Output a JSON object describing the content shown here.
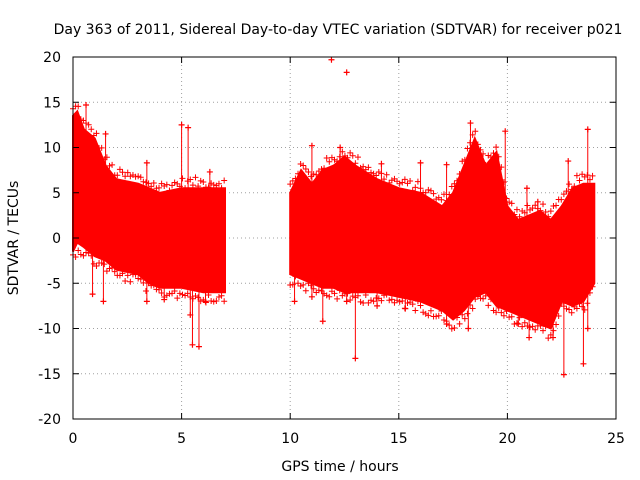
{
  "chart_data": {
    "type": "scatter",
    "title": "Day 363 of 2011, Sidereal Day-to-day VTEC variation (SDTVAR) for receiver p021",
    "xlabel": "GPS time / hours",
    "ylabel": "SDTVAR / TECUs",
    "xlim": [
      0,
      25
    ],
    "ylim": [
      -20,
      20
    ],
    "xticks": [
      "0",
      "5",
      "10",
      "15",
      "20",
      "25"
    ],
    "yticks": [
      "20",
      "15",
      "10",
      "5",
      "0",
      "-5",
      "-10",
      "-15",
      "-20"
    ],
    "grid": true,
    "marker": "+",
    "series": [
      {
        "name": "p021",
        "color": "#ff0000",
        "envelope": [
          {
            "x": 0.0,
            "lo": -1.5,
            "hi": 13.5
          },
          {
            "x": 0.2,
            "lo": -0.5,
            "hi": 14.0
          },
          {
            "x": 0.5,
            "lo": -1.0,
            "hi": 12.0
          },
          {
            "x": 1.0,
            "lo": -2.0,
            "hi": 11.0
          },
          {
            "x": 1.5,
            "lo": -2.5,
            "hi": 8.0
          },
          {
            "x": 2.0,
            "lo": -3.5,
            "hi": 6.5
          },
          {
            "x": 3.0,
            "lo": -4.0,
            "hi": 6.0
          },
          {
            "x": 3.5,
            "lo": -5.0,
            "hi": 5.5
          },
          {
            "x": 4.0,
            "lo": -5.5,
            "hi": 5.0
          },
          {
            "x": 5.0,
            "lo": -5.5,
            "hi": 5.5
          },
          {
            "x": 6.0,
            "lo": -6.0,
            "hi": 5.5
          },
          {
            "x": 7.0,
            "lo": -6.0,
            "hi": 5.5
          },
          {
            "x": 10.0,
            "lo": -4.0,
            "hi": 5.0
          },
          {
            "x": 10.5,
            "lo": -4.5,
            "hi": 7.5
          },
          {
            "x": 11.0,
            "lo": -5.0,
            "hi": 6.0
          },
          {
            "x": 11.5,
            "lo": -5.5,
            "hi": 7.5
          },
          {
            "x": 12.0,
            "lo": -5.5,
            "hi": 8.0
          },
          {
            "x": 12.5,
            "lo": -6.0,
            "hi": 9.0
          },
          {
            "x": 13.0,
            "lo": -6.0,
            "hi": 8.0
          },
          {
            "x": 14.0,
            "lo": -6.0,
            "hi": 6.5
          },
          {
            "x": 15.0,
            "lo": -6.5,
            "hi": 5.5
          },
          {
            "x": 16.0,
            "lo": -7.0,
            "hi": 5.0
          },
          {
            "x": 17.0,
            "lo": -8.0,
            "hi": 3.5
          },
          {
            "x": 17.5,
            "lo": -9.0,
            "hi": 5.0
          },
          {
            "x": 18.0,
            "lo": -8.0,
            "hi": 8.0
          },
          {
            "x": 18.5,
            "lo": -6.5,
            "hi": 11.0
          },
          {
            "x": 19.0,
            "lo": -6.0,
            "hi": 8.0
          },
          {
            "x": 19.5,
            "lo": -7.5,
            "hi": 9.5
          },
          {
            "x": 20.0,
            "lo": -8.0,
            "hi": 3.5
          },
          {
            "x": 20.5,
            "lo": -8.5,
            "hi": 2.0
          },
          {
            "x": 21.0,
            "lo": -9.0,
            "hi": 2.5
          },
          {
            "x": 21.5,
            "lo": -9.5,
            "hi": 3.0
          },
          {
            "x": 22.0,
            "lo": -10.0,
            "hi": 2.0
          },
          {
            "x": 22.5,
            "lo": -7.0,
            "hi": 3.5
          },
          {
            "x": 23.0,
            "lo": -7.5,
            "hi": 5.5
          },
          {
            "x": 23.5,
            "lo": -7.0,
            "hi": 6.0
          },
          {
            "x": 24.0,
            "lo": -5.0,
            "hi": 6.0
          }
        ],
        "outliers": [
          {
            "x": 11.9,
            "y": 19.7
          },
          {
            "x": 12.6,
            "y": 18.3
          },
          {
            "x": 0.6,
            "y": 14.7
          },
          {
            "x": 18.3,
            "y": 12.7
          },
          {
            "x": 5.0,
            "y": 12.5
          },
          {
            "x": 5.3,
            "y": 12.2
          },
          {
            "x": 19.9,
            "y": 11.8
          },
          {
            "x": 23.7,
            "y": 12.0
          },
          {
            "x": 1.5,
            "y": 11.5
          },
          {
            "x": 11.0,
            "y": 10.2
          },
          {
            "x": 12.3,
            "y": 10.0
          },
          {
            "x": 14.2,
            "y": 8.2
          },
          {
            "x": 16.0,
            "y": 8.3
          },
          {
            "x": 17.2,
            "y": 8.1
          },
          {
            "x": 22.8,
            "y": 8.5
          },
          {
            "x": 3.4,
            "y": 8.3
          },
          {
            "x": 6.3,
            "y": 7.3
          },
          {
            "x": 20.9,
            "y": 5.5
          },
          {
            "x": 21.4,
            "y": 4.0
          },
          {
            "x": 0.9,
            "y": -6.2
          },
          {
            "x": 1.4,
            "y": -7.0
          },
          {
            "x": 3.4,
            "y": -7.0
          },
          {
            "x": 4.2,
            "y": -6.8
          },
          {
            "x": 5.4,
            "y": -8.5
          },
          {
            "x": 5.5,
            "y": -11.8
          },
          {
            "x": 5.8,
            "y": -12.0
          },
          {
            "x": 6.1,
            "y": -7.0
          },
          {
            "x": 10.2,
            "y": -7.0
          },
          {
            "x": 11.0,
            "y": -6.5
          },
          {
            "x": 11.5,
            "y": -9.2
          },
          {
            "x": 12.6,
            "y": -7.0
          },
          {
            "x": 13.0,
            "y": -13.3
          },
          {
            "x": 14.0,
            "y": -7.5
          },
          {
            "x": 15.3,
            "y": -7.8
          },
          {
            "x": 17.2,
            "y": -9.5
          },
          {
            "x": 18.2,
            "y": -10.0
          },
          {
            "x": 20.5,
            "y": -9.5
          },
          {
            "x": 21.0,
            "y": -11.0
          },
          {
            "x": 22.1,
            "y": -11.0
          },
          {
            "x": 22.6,
            "y": -15.1
          },
          {
            "x": 23.5,
            "y": -13.9
          },
          {
            "x": 23.7,
            "y": -10.0
          }
        ]
      }
    ]
  }
}
